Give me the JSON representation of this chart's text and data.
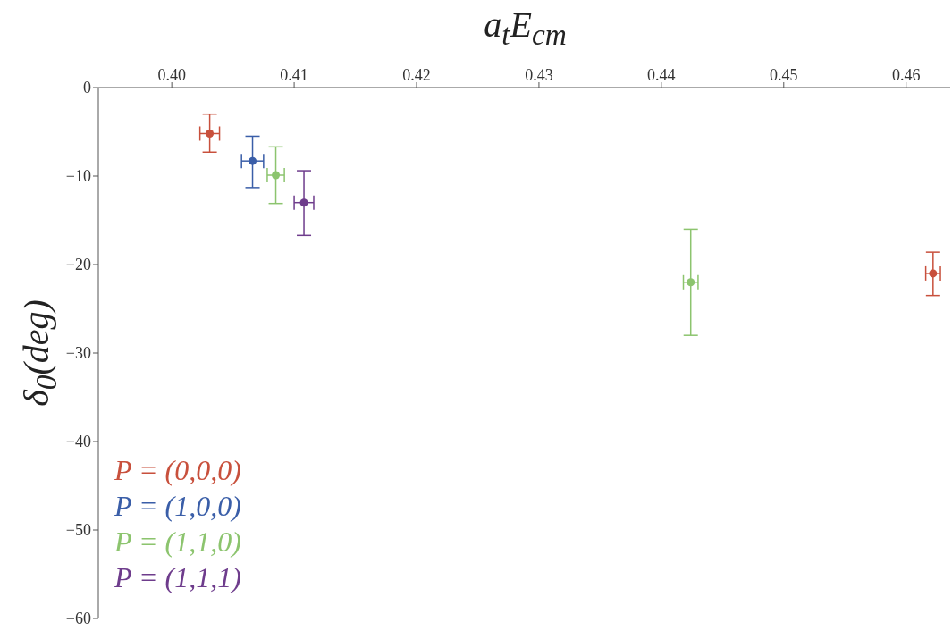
{
  "chart_data": {
    "type": "scatter",
    "xlabel": "a$_{t}$E$_{cm}$",
    "ylabel": "δ$_{0}$(deg)",
    "marker": "circle",
    "legend": "bottom left",
    "xlim": [
      0.394,
      0.4636
    ],
    "xticks": [
      {
        "value": 0.4,
        "label": "0.40"
      },
      0.41,
      0.42,
      0.43,
      0.44,
      0.45,
      0.46
    ],
    "ylim": [
      -60,
      0
    ],
    "yticks": [
      0,
      {
        "value": -10,
        "label": "−10"
      },
      {
        "value": -20,
        "label": "−20"
      },
      {
        "value": -30,
        "label": "−30"
      },
      {
        "value": -40,
        "label": "−40"
      },
      {
        "value": -50,
        "label": "−50"
      },
      {
        "value": -60,
        "label": "−60"
      }
    ],
    "series": [
      {
        "name": "P = (0,0,0)",
        "color": "#c8503c",
        "x": [
          0.4031,
          0.4622
        ],
        "values": [
          -5.2,
          -21.0
        ],
        "errors": [
          [
            -7.3,
            -3.0
          ],
          [
            -23.5,
            -18.6
          ]
        ],
        "xerrors": [
          0.0008,
          0.0006
        ]
      },
      {
        "name": "P = (1,0,0)",
        "color": "#3a5ea8",
        "x": [
          0.4066
        ],
        "values": [
          -8.3
        ],
        "errors": [
          [
            -11.3,
            -5.5
          ]
        ],
        "xerrors": [
          0.0009
        ]
      },
      {
        "name": "P = (1,1,0)",
        "color": "#8cc46e",
        "x": [
          0.4085,
          0.4424
        ],
        "values": [
          -9.9,
          -22.0
        ],
        "errors": [
          [
            -13.1,
            -6.7
          ],
          [
            -28.0,
            -16.0
          ]
        ],
        "xerrors": [
          0.0007,
          0.0006
        ]
      },
      {
        "name": "P = (1,1,1)",
        "color": "#6e3c8c",
        "x": [
          0.4108
        ],
        "values": [
          -13.0
        ],
        "errors": [
          [
            -16.7,
            -9.4
          ]
        ],
        "xerrors": [
          0.0008
        ]
      }
    ]
  }
}
